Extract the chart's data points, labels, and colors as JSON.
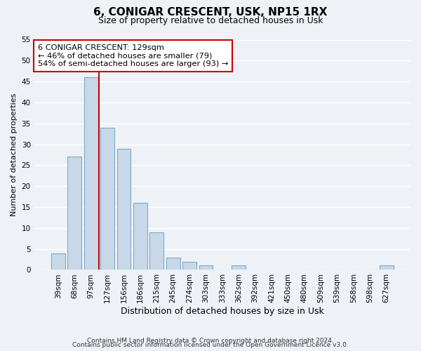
{
  "title": "6, CONIGAR CRESCENT, USK, NP15 1RX",
  "subtitle": "Size of property relative to detached houses in Usk",
  "xlabel": "Distribution of detached houses by size in Usk",
  "ylabel": "Number of detached properties",
  "bar_labels": [
    "39sqm",
    "68sqm",
    "97sqm",
    "127sqm",
    "156sqm",
    "186sqm",
    "215sqm",
    "245sqm",
    "274sqm",
    "303sqm",
    "333sqm",
    "362sqm",
    "392sqm",
    "421sqm",
    "450sqm",
    "480sqm",
    "509sqm",
    "539sqm",
    "568sqm",
    "598sqm",
    "627sqm"
  ],
  "bar_values": [
    4,
    27,
    46,
    34,
    29,
    16,
    9,
    3,
    2,
    1,
    0,
    1,
    0,
    0,
    0,
    0,
    0,
    0,
    0,
    0,
    1
  ],
  "bar_color": "#c8d8e8",
  "bar_edge_color": "#7aaac8",
  "vline_color": "#cc0000",
  "vline_index": 2.5,
  "ylim": [
    0,
    55
  ],
  "yticks": [
    0,
    5,
    10,
    15,
    20,
    25,
    30,
    35,
    40,
    45,
    50,
    55
  ],
  "annotation_text": "6 CONIGAR CRESCENT: 129sqm\n← 46% of detached houses are smaller (79)\n54% of semi-detached houses are larger (93) →",
  "annotation_box_color": "#ffffff",
  "annotation_box_edge": "#cc0000",
  "footer_line1": "Contains HM Land Registry data © Crown copyright and database right 2024.",
  "footer_line2": "Contains public sector information licensed under the Open Government Licence v3.0.",
  "background_color": "#eef2f7",
  "grid_color": "#ffffff",
  "title_fontsize": 11,
  "subtitle_fontsize": 9,
  "ylabel_fontsize": 8,
  "xlabel_fontsize": 9,
  "tick_fontsize": 7.5,
  "footer_fontsize": 6.5
}
